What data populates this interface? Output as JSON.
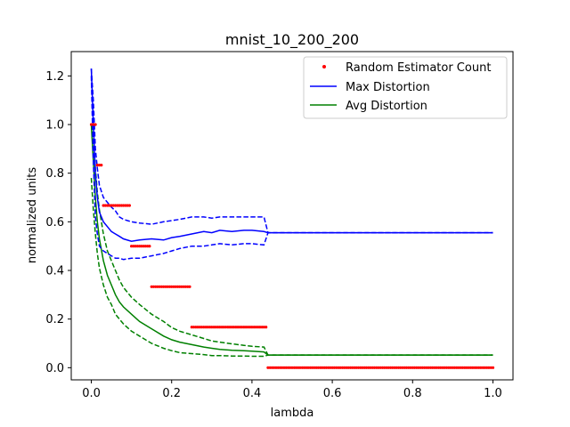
{
  "chart_data": {
    "type": "line",
    "title": "mnist_10_200_200",
    "xlabel": "lambda",
    "ylabel": "normalized units",
    "xlim": [
      -0.05,
      1.05
    ],
    "ylim": [
      -0.05,
      1.3
    ],
    "xticks": [
      0.0,
      0.2,
      0.4,
      0.6,
      0.8,
      1.0
    ],
    "xtick_labels": [
      "0.0",
      "0.2",
      "0.4",
      "0.6",
      "0.8",
      "1.0"
    ],
    "yticks": [
      0.0,
      0.2,
      0.4,
      0.6,
      0.8,
      1.0,
      1.2
    ],
    "ytick_labels": [
      "0.0",
      "0.2",
      "0.4",
      "0.6",
      "0.8",
      "1.0",
      "1.2"
    ],
    "legend": {
      "placement": "top-right",
      "entries": [
        "Random Estimator Count",
        "Max Distortion",
        "Avg Distortion"
      ]
    },
    "grid": false,
    "colors": {
      "count": "#ff0000",
      "max": "#0000ff",
      "avg": "#008000"
    },
    "series": [
      {
        "name": "Random Estimator Count",
        "style": "points",
        "segments": [
          {
            "x_start": 0.0,
            "x_end": 0.01,
            "y": 1.0
          },
          {
            "x_start": 0.015,
            "x_end": 0.025,
            "y": 0.833
          },
          {
            "x_start": 0.03,
            "x_end": 0.095,
            "y": 0.667
          },
          {
            "x_start": 0.1,
            "x_end": 0.145,
            "y": 0.5
          },
          {
            "x_start": 0.15,
            "x_end": 0.245,
            "y": 0.333
          },
          {
            "x_start": 0.25,
            "x_end": 0.435,
            "y": 0.167
          },
          {
            "x_start": 0.44,
            "x_end": 1.0,
            "y": 0.0
          }
        ]
      },
      {
        "name": "Max Distortion",
        "style": "solid",
        "x": [
          0.0,
          0.005,
          0.01,
          0.015,
          0.02,
          0.03,
          0.04,
          0.05,
          0.06,
          0.07,
          0.08,
          0.1,
          0.12,
          0.15,
          0.18,
          0.2,
          0.22,
          0.25,
          0.28,
          0.3,
          0.32,
          0.35,
          0.38,
          0.4,
          0.43,
          0.44,
          1.0
        ],
        "y": [
          1.23,
          1.0,
          0.8,
          0.7,
          0.64,
          0.6,
          0.58,
          0.56,
          0.55,
          0.54,
          0.53,
          0.52,
          0.525,
          0.53,
          0.525,
          0.535,
          0.54,
          0.55,
          0.56,
          0.555,
          0.565,
          0.56,
          0.565,
          0.565,
          0.56,
          0.555,
          0.555
        ],
        "upper": [
          1.23,
          1.1,
          0.9,
          0.82,
          0.75,
          0.7,
          0.68,
          0.66,
          0.645,
          0.62,
          0.61,
          0.6,
          0.595,
          0.59,
          0.6,
          0.605,
          0.61,
          0.62,
          0.62,
          0.615,
          0.62,
          0.62,
          0.62,
          0.62,
          0.62,
          0.555,
          0.555
        ],
        "lower": [
          1.2,
          0.85,
          0.62,
          0.55,
          0.5,
          0.48,
          0.47,
          0.46,
          0.45,
          0.45,
          0.445,
          0.45,
          0.45,
          0.46,
          0.47,
          0.48,
          0.49,
          0.5,
          0.5,
          0.505,
          0.51,
          0.505,
          0.51,
          0.51,
          0.505,
          0.555,
          0.555
        ]
      },
      {
        "name": "Avg Distortion",
        "style": "solid",
        "x": [
          0.0,
          0.005,
          0.01,
          0.015,
          0.02,
          0.03,
          0.04,
          0.05,
          0.06,
          0.07,
          0.08,
          0.1,
          0.12,
          0.15,
          0.18,
          0.2,
          0.22,
          0.25,
          0.28,
          0.3,
          0.32,
          0.35,
          0.38,
          0.4,
          0.43,
          0.44,
          1.0
        ],
        "y": [
          1.0,
          0.85,
          0.7,
          0.6,
          0.53,
          0.44,
          0.38,
          0.34,
          0.3,
          0.27,
          0.25,
          0.22,
          0.19,
          0.16,
          0.13,
          0.115,
          0.105,
          0.095,
          0.085,
          0.08,
          0.075,
          0.072,
          0.07,
          0.068,
          0.065,
          0.052,
          0.052
        ],
        "upper": [
          1.0,
          0.95,
          0.82,
          0.72,
          0.65,
          0.55,
          0.48,
          0.44,
          0.4,
          0.36,
          0.33,
          0.29,
          0.26,
          0.22,
          0.19,
          0.165,
          0.15,
          0.135,
          0.12,
          0.11,
          0.105,
          0.098,
          0.092,
          0.088,
          0.085,
          0.052,
          0.052
        ],
        "lower": [
          0.78,
          0.65,
          0.55,
          0.47,
          0.41,
          0.34,
          0.29,
          0.26,
          0.22,
          0.2,
          0.18,
          0.15,
          0.13,
          0.1,
          0.08,
          0.07,
          0.062,
          0.058,
          0.054,
          0.05,
          0.05,
          0.048,
          0.048,
          0.047,
          0.047,
          0.052,
          0.052
        ]
      }
    ]
  }
}
